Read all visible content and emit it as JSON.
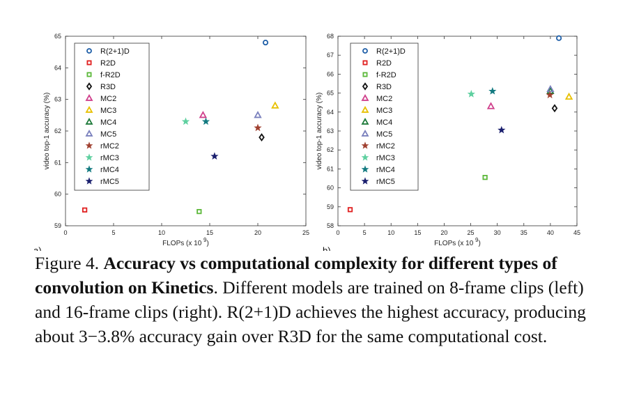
{
  "chart_data": [
    {
      "type": "scatter",
      "panel_label": "a)",
      "xlabel": "FLOPs (x 10 ^9)",
      "xlabel_main": "FLOPs (x 10",
      "xlabel_exp": "9",
      "xlabel_close": ")",
      "ylabel": "video top-1 accuracy (%)",
      "xlim": [
        0,
        25
      ],
      "ylim": [
        59,
        65
      ],
      "xticks": [
        0,
        5,
        10,
        15,
        20,
        25
      ],
      "yticks": [
        59,
        60,
        61,
        62,
        63,
        64,
        65
      ],
      "series": [
        {
          "name": "R(2+1)D",
          "marker": "circle",
          "color": "#1f5fa8",
          "x": 20.8,
          "y": 64.8
        },
        {
          "name": "R2D",
          "marker": "square",
          "color": "#e02020",
          "x": 2.0,
          "y": 59.5
        },
        {
          "name": "f-R2D",
          "marker": "square",
          "color": "#5cb83a",
          "x": 13.9,
          "y": 59.45
        },
        {
          "name": "R3D",
          "marker": "diamond",
          "color": "#111111",
          "x": 20.4,
          "y": 61.8
        },
        {
          "name": "MC2",
          "marker": "triangle",
          "color": "#d0408c",
          "x": 14.3,
          "y": 62.5
        },
        {
          "name": "MC3",
          "marker": "triangle",
          "color": "#e8c000",
          "x": 21.8,
          "y": 62.8
        },
        {
          "name": "MC4",
          "marker": "triangle",
          "color": "#1e7a3a",
          "x": null,
          "y": null
        },
        {
          "name": "MC5",
          "marker": "triangle",
          "color": "#7a80bd",
          "x": 20.0,
          "y": 62.5
        },
        {
          "name": "rMC2",
          "marker": "star",
          "color": "#a04030",
          "x": 20.0,
          "y": 62.1
        },
        {
          "name": "rMC3",
          "marker": "star",
          "color": "#5fd0a0",
          "x": 12.5,
          "y": 62.3
        },
        {
          "name": "rMC4",
          "marker": "star",
          "color": "#137a80",
          "x": 14.6,
          "y": 62.3
        },
        {
          "name": "rMC5",
          "marker": "star",
          "color": "#1a1f6e",
          "x": 15.5,
          "y": 61.2
        }
      ]
    },
    {
      "type": "scatter",
      "panel_label": "b)",
      "xlabel": "FLOPs (x 10 ^9)",
      "xlabel_main": "FLOPs (x 10",
      "xlabel_exp": "9",
      "xlabel_close": ")",
      "ylabel": "video top-1 accuracy (%)",
      "xlim": [
        0,
        45
      ],
      "ylim": [
        58,
        68
      ],
      "xticks": [
        0,
        5,
        10,
        15,
        20,
        25,
        30,
        35,
        40,
        45
      ],
      "yticks": [
        58,
        59,
        60,
        61,
        62,
        63,
        64,
        65,
        66,
        67,
        68
      ],
      "series": [
        {
          "name": "R(2+1)D",
          "marker": "circle",
          "color": "#1f5fa8",
          "x": 41.6,
          "y": 67.9
        },
        {
          "name": "R2D",
          "marker": "square",
          "color": "#e02020",
          "x": 2.3,
          "y": 58.85
        },
        {
          "name": "f-R2D",
          "marker": "square",
          "color": "#5cb83a",
          "x": 27.7,
          "y": 60.55
        },
        {
          "name": "R3D",
          "marker": "diamond",
          "color": "#111111",
          "x": 40.8,
          "y": 64.2
        },
        {
          "name": "MC2",
          "marker": "triangle",
          "color": "#d0408c",
          "x": 28.8,
          "y": 64.3
        },
        {
          "name": "MC3",
          "marker": "triangle",
          "color": "#e8c000",
          "x": 43.5,
          "y": 64.8
        },
        {
          "name": "MC4",
          "marker": "triangle",
          "color": "#1e7a3a",
          "x": 40.0,
          "y": 65.1
        },
        {
          "name": "MC5",
          "marker": "triangle",
          "color": "#7a80bd",
          "x": 40.0,
          "y": 65.2
        },
        {
          "name": "rMC2",
          "marker": "star",
          "color": "#a04030",
          "x": 39.9,
          "y": 64.9
        },
        {
          "name": "rMC3",
          "marker": "star",
          "color": "#5fd0a0",
          "x": 25.1,
          "y": 64.95
        },
        {
          "name": "rMC4",
          "marker": "star",
          "color": "#137a80",
          "x": 29.1,
          "y": 65.1
        },
        {
          "name": "rMC5",
          "marker": "star",
          "color": "#1a1f6e",
          "x": 30.8,
          "y": 63.05
        }
      ]
    }
  ],
  "caption": {
    "prefix": "Figure 4.",
    "bold": "Accuracy vs computational complexity for different types of convolution on Kinetics",
    "rest": ". Different models are trained on 8-frame clips (left) and 16-frame clips (right). R(2+1)D achieves the highest accuracy, producing about 3−3.8% accuracy gain over R3D for the same computational cost."
  }
}
